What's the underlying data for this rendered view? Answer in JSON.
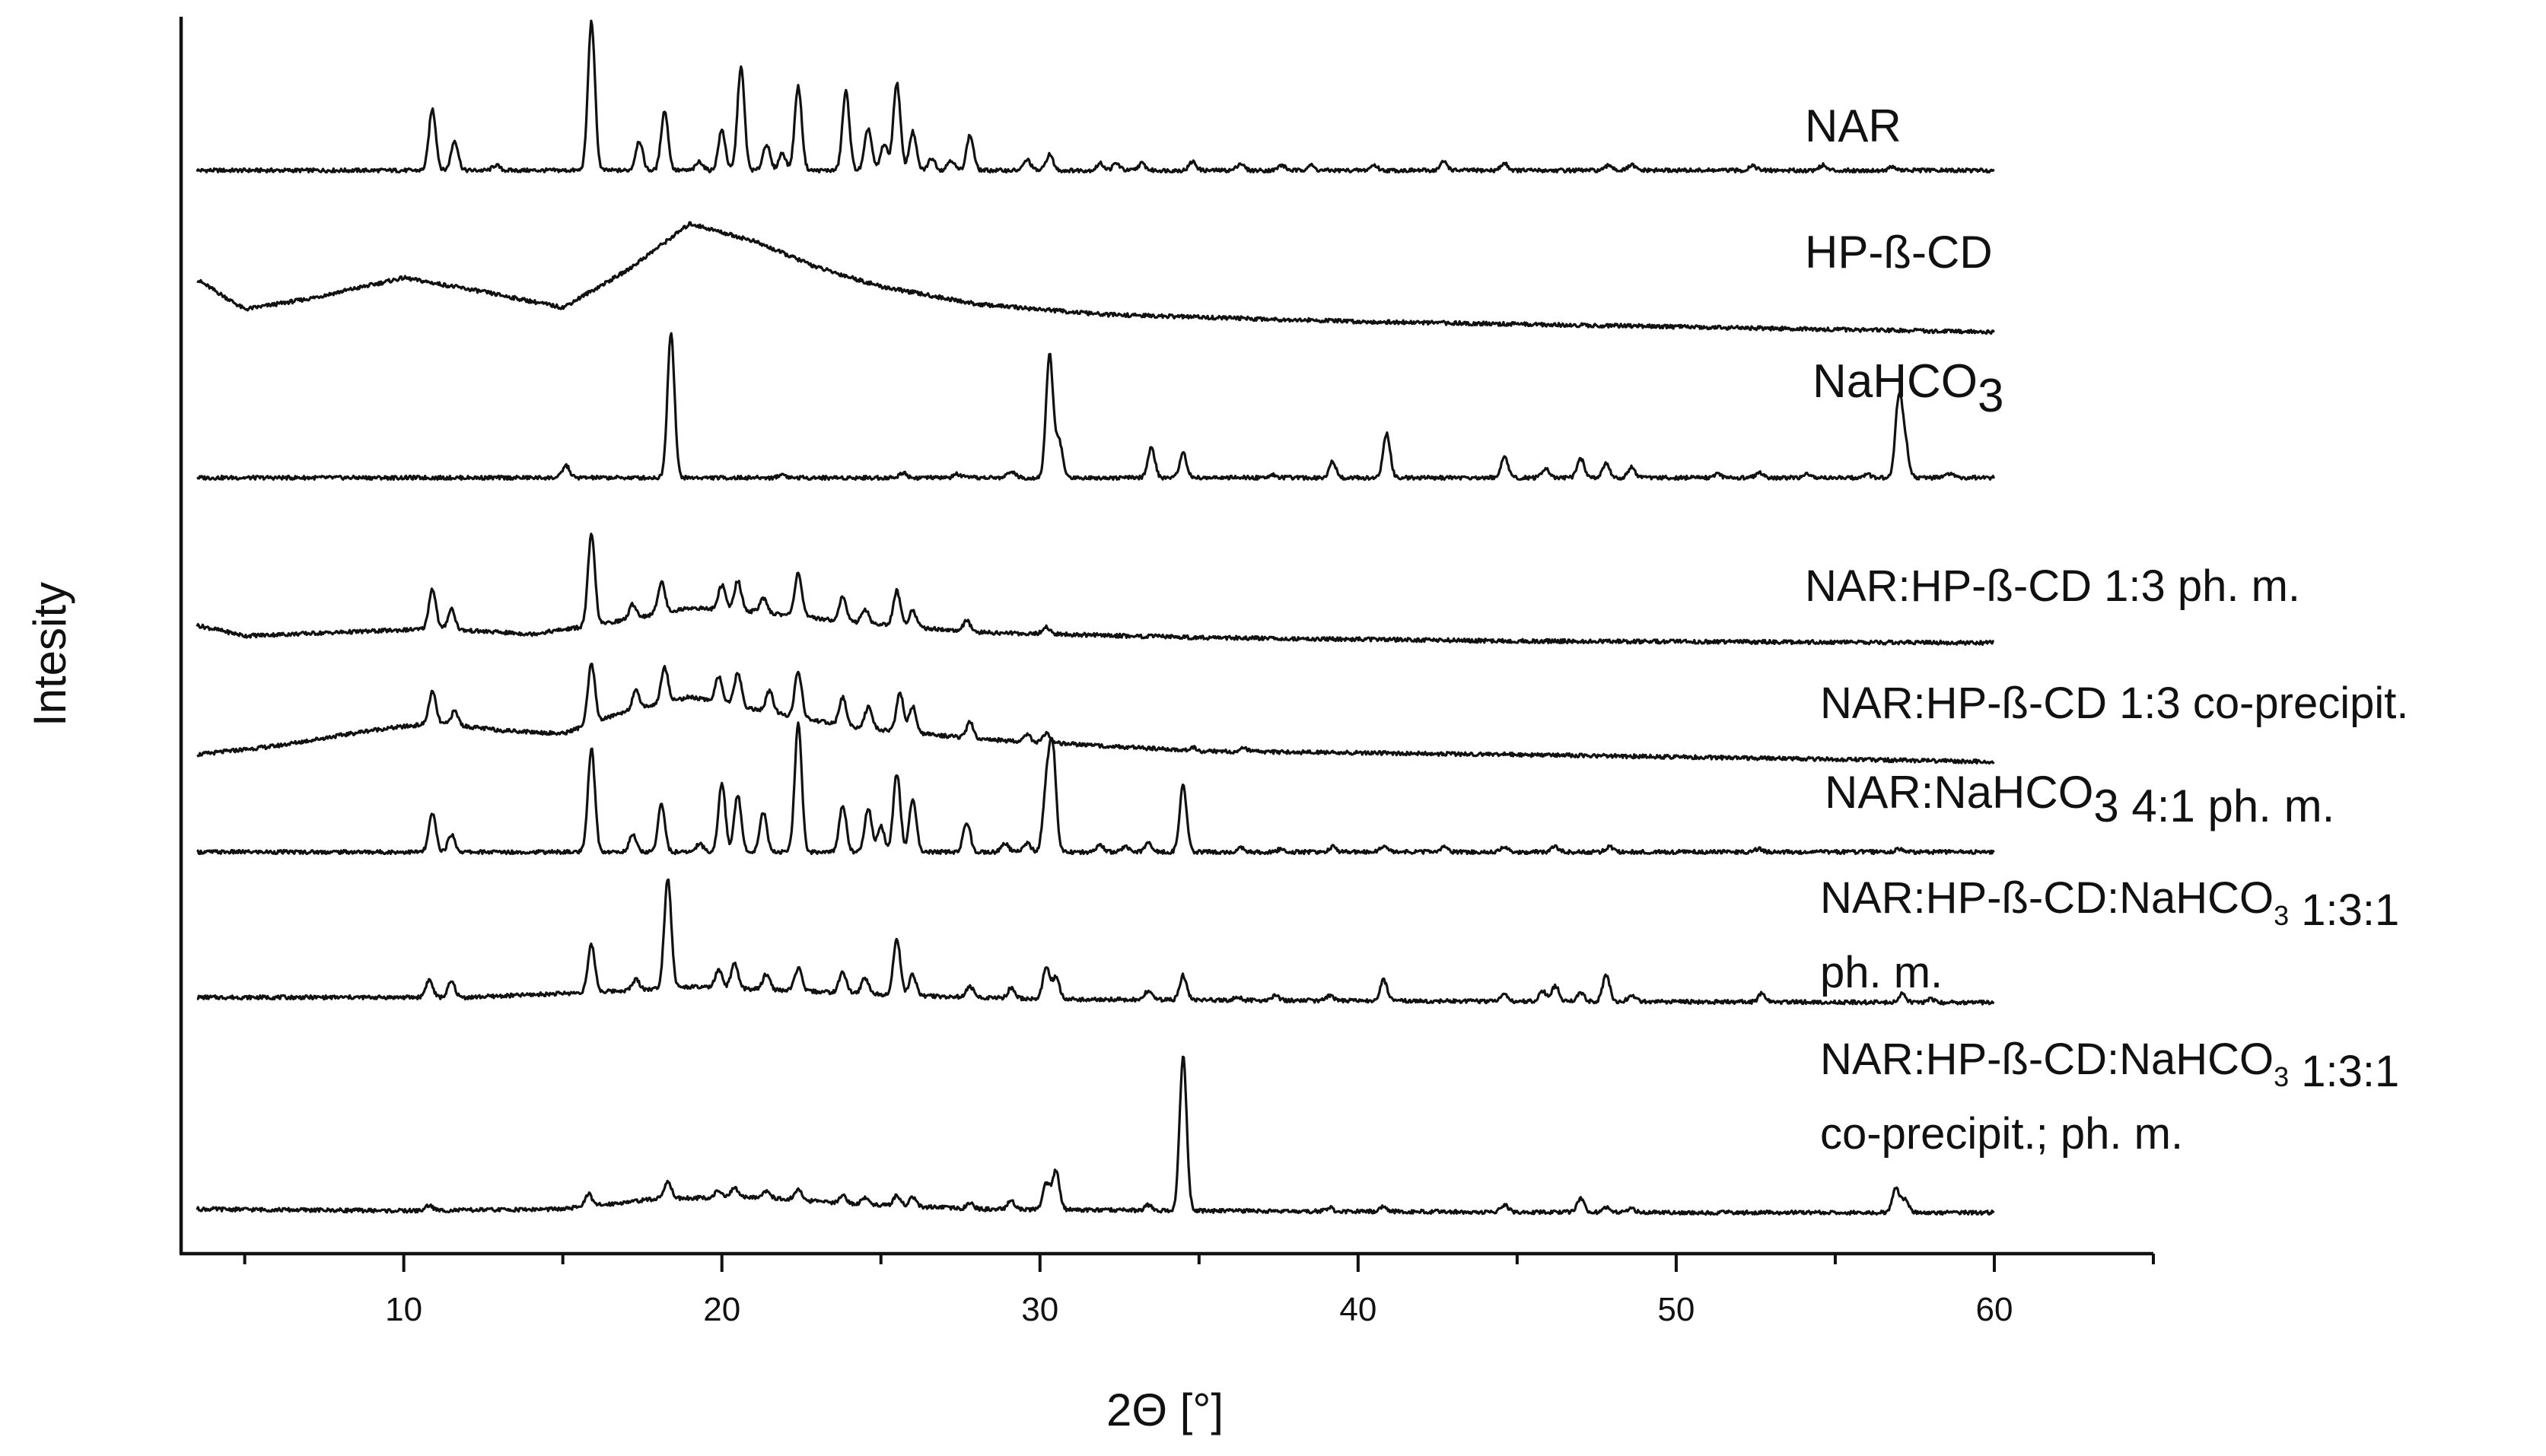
{
  "chart_data": {
    "type": "line",
    "xlabel": "2Θ [°]",
    "ylabel": "Intesity",
    "xlim": [
      3,
      65
    ],
    "x_ticks": [
      10,
      20,
      30,
      40,
      50,
      60
    ],
    "x_minor_ticks": [
      5,
      15,
      25,
      35,
      45,
      55,
      65
    ],
    "x_range_data": [
      3.5,
      60
    ],
    "y_ticks_shown": false,
    "legend": "none; each trace labelled at right",
    "series": [
      {
        "name": "NAR",
        "label_parts": [
          {
            "t": "NAR"
          }
        ],
        "label_lines": 1,
        "baseline": 0,
        "background": [
          [
            3.5,
            0
          ],
          [
            60,
            0
          ]
        ],
        "peaks": [
          [
            10.9,
            35
          ],
          [
            11.6,
            17
          ],
          [
            12.9,
            3
          ],
          [
            15.9,
            85
          ],
          [
            17.4,
            17
          ],
          [
            18.2,
            34
          ],
          [
            19.3,
            5
          ],
          [
            20.0,
            23
          ],
          [
            20.6,
            59
          ],
          [
            21.4,
            15
          ],
          [
            21.9,
            10
          ],
          [
            22.4,
            48
          ],
          [
            23.9,
            45
          ],
          [
            24.6,
            24
          ],
          [
            25.1,
            15
          ],
          [
            25.5,
            50
          ],
          [
            26.0,
            22
          ],
          [
            26.6,
            7
          ],
          [
            27.2,
            6
          ],
          [
            27.8,
            20
          ],
          [
            29.6,
            6
          ],
          [
            30.3,
            9
          ],
          [
            31.9,
            4
          ],
          [
            32.4,
            4
          ],
          [
            33.2,
            4
          ],
          [
            34.8,
            5
          ],
          [
            36.3,
            4
          ],
          [
            37.6,
            3
          ],
          [
            38.5,
            3
          ],
          [
            40.5,
            3
          ],
          [
            42.7,
            5
          ],
          [
            44.6,
            4
          ],
          [
            47.9,
            3
          ],
          [
            48.6,
            3
          ],
          [
            52.4,
            3
          ],
          [
            54.6,
            3
          ],
          [
            56.8,
            2
          ]
        ]
      },
      {
        "name": "HP-ß-CD",
        "label_parts": [
          {
            "t": "HP-ß-CD"
          }
        ],
        "label_lines": 1,
        "baseline": 0,
        "background": [
          [
            3.5,
            25
          ],
          [
            5,
            8
          ],
          [
            7,
            14
          ],
          [
            10,
            26
          ],
          [
            12.5,
            18
          ],
          [
            15,
            9
          ],
          [
            17,
            30
          ],
          [
            19,
            57
          ],
          [
            21,
            47
          ],
          [
            23,
            32
          ],
          [
            25,
            21
          ],
          [
            28,
            11
          ],
          [
            32,
            5
          ],
          [
            40,
            1
          ],
          [
            50,
            -2
          ],
          [
            60,
            -5
          ]
        ],
        "peaks": []
      },
      {
        "name": "NaHCO3",
        "label_parts": [
          {
            "t": "NaHCO"
          },
          {
            "t": "3",
            "sub": true
          }
        ],
        "label_lines": 1,
        "baseline": 0,
        "background": [
          [
            3.5,
            0
          ],
          [
            60,
            0
          ]
        ],
        "peaks": [
          [
            15.1,
            7
          ],
          [
            18.4,
            83
          ],
          [
            21.9,
            2
          ],
          [
            25.7,
            3
          ],
          [
            27.4,
            2
          ],
          [
            29.1,
            4
          ],
          [
            30.3,
            70
          ],
          [
            30.6,
            21
          ],
          [
            33.5,
            17
          ],
          [
            34.5,
            14
          ],
          [
            37.3,
            2
          ],
          [
            39.2,
            9
          ],
          [
            40.9,
            25
          ],
          [
            44.6,
            12
          ],
          [
            45.9,
            5
          ],
          [
            47.0,
            11
          ],
          [
            47.8,
            8
          ],
          [
            48.6,
            6
          ],
          [
            51.3,
            2
          ],
          [
            52.6,
            3
          ],
          [
            54.1,
            2
          ],
          [
            56.0,
            2
          ],
          [
            57.0,
            45
          ],
          [
            57.2,
            18
          ],
          [
            58.6,
            2
          ]
        ]
      },
      {
        "name": "NAR:HP-ß-CD 1:3 ph. m.",
        "label_parts": [
          {
            "t": "NAR:HP-ß-CD 1:3 ph. m."
          }
        ],
        "label_lines": 1,
        "baseline": 0,
        "background": [
          [
            3.5,
            10
          ],
          [
            5,
            4
          ],
          [
            8,
            6
          ],
          [
            11,
            8
          ],
          [
            14,
            5
          ],
          [
            16,
            10
          ],
          [
            19,
            20
          ],
          [
            21,
            18
          ],
          [
            24,
            12
          ],
          [
            28,
            6
          ],
          [
            35,
            3
          ],
          [
            45,
            1
          ],
          [
            60,
            0
          ]
        ],
        "peaks": [
          [
            10.9,
            23
          ],
          [
            11.5,
            12
          ],
          [
            15.9,
            52
          ],
          [
            17.2,
            8
          ],
          [
            18.1,
            18
          ],
          [
            20.0,
            14
          ],
          [
            20.5,
            17
          ],
          [
            21.3,
            8
          ],
          [
            22.4,
            25
          ],
          [
            23.8,
            14
          ],
          [
            24.5,
            8
          ],
          [
            25.5,
            20
          ],
          [
            26.0,
            10
          ],
          [
            27.7,
            6
          ],
          [
            30.2,
            4
          ]
        ]
      },
      {
        "name": "NAR:HP-ß-CD 1:3 co-precipit.",
        "label_parts": [
          {
            "t": "NAR:HP-ß-CD 1:3 co-precipit."
          }
        ],
        "label_lines": 1,
        "baseline": 0,
        "background": [
          [
            3.5,
            0
          ],
          [
            6,
            5
          ],
          [
            9,
            14
          ],
          [
            11,
            18
          ],
          [
            13,
            14
          ],
          [
            15,
            12
          ],
          [
            17,
            25
          ],
          [
            19,
            33
          ],
          [
            21,
            26
          ],
          [
            24,
            16
          ],
          [
            28,
            9
          ],
          [
            35,
            2
          ],
          [
            45,
            0
          ],
          [
            60,
            -4
          ]
        ],
        "peaks": [
          [
            10.9,
            18
          ],
          [
            11.6,
            8
          ],
          [
            15.9,
            34
          ],
          [
            17.3,
            10
          ],
          [
            18.2,
            20
          ],
          [
            19.9,
            15
          ],
          [
            20.5,
            19
          ],
          [
            21.5,
            12
          ],
          [
            22.4,
            26
          ],
          [
            23.8,
            16
          ],
          [
            24.6,
            12
          ],
          [
            25.6,
            22
          ],
          [
            26.0,
            15
          ],
          [
            27.8,
            9
          ],
          [
            29.6,
            4
          ],
          [
            30.2,
            5
          ],
          [
            34.8,
            2
          ],
          [
            36.4,
            2
          ]
        ]
      },
      {
        "name": "NAR:NaHCO3 4:1 ph. m.",
        "label_parts": [
          {
            "t": "NAR:NaHCO"
          },
          {
            "t": "3",
            "sub": true
          },
          {
            "t": " 4:1 ph. m."
          }
        ],
        "label_lines": 1,
        "baseline": 0,
        "background": [
          [
            3.5,
            0
          ],
          [
            60,
            0
          ]
        ],
        "peaks": [
          [
            10.9,
            22
          ],
          [
            11.5,
            10
          ],
          [
            15.9,
            59
          ],
          [
            17.2,
            10
          ],
          [
            18.1,
            27
          ],
          [
            19.3,
            5
          ],
          [
            20.0,
            39
          ],
          [
            20.5,
            33
          ],
          [
            21.3,
            23
          ],
          [
            22.4,
            73
          ],
          [
            23.8,
            27
          ],
          [
            24.6,
            25
          ],
          [
            25.0,
            15
          ],
          [
            25.5,
            45
          ],
          [
            26.0,
            30
          ],
          [
            27.7,
            17
          ],
          [
            28.9,
            5
          ],
          [
            29.6,
            5
          ],
          [
            30.2,
            35
          ],
          [
            30.4,
            57
          ],
          [
            31.9,
            4
          ],
          [
            32.7,
            3
          ],
          [
            33.4,
            5
          ],
          [
            34.5,
            38
          ],
          [
            36.3,
            3
          ],
          [
            37.6,
            2
          ],
          [
            39.2,
            3
          ],
          [
            40.8,
            3
          ],
          [
            42.7,
            3
          ],
          [
            44.6,
            3
          ],
          [
            46.2,
            3
          ],
          [
            47.9,
            3
          ],
          [
            52.6,
            2
          ],
          [
            57.0,
            2
          ]
        ]
      },
      {
        "name": "NAR:HP-ß-CD:NaHCO3 1:3:1 ph. m.",
        "label_parts": [
          {
            "t": "NAR:HP-ß-CD:NaHCO"
          },
          {
            "t": "3",
            "sub": true
          },
          {
            "t": " 1:3:1"
          }
        ],
        "label_lines": 2,
        "label_line2": "ph. m.",
        "baseline": 0,
        "background": [
          [
            3.5,
            3
          ],
          [
            8,
            3
          ],
          [
            12,
            3
          ],
          [
            16,
            6
          ],
          [
            19,
            9
          ],
          [
            22,
            7
          ],
          [
            26,
            4
          ],
          [
            30,
            2
          ],
          [
            40,
            1
          ],
          [
            60,
            0
          ]
        ],
        "peaks": [
          [
            10.8,
            10
          ],
          [
            11.5,
            9
          ],
          [
            15.9,
            27
          ],
          [
            17.3,
            6
          ],
          [
            18.3,
            63
          ],
          [
            19.9,
            10
          ],
          [
            20.4,
            14
          ],
          [
            21.4,
            9
          ],
          [
            22.4,
            13
          ],
          [
            23.8,
            12
          ],
          [
            24.5,
            9
          ],
          [
            25.5,
            32
          ],
          [
            26.0,
            12
          ],
          [
            27.8,
            6
          ],
          [
            29.1,
            6
          ],
          [
            30.2,
            18
          ],
          [
            30.5,
            12
          ],
          [
            33.4,
            5
          ],
          [
            34.5,
            14
          ],
          [
            36.2,
            2
          ],
          [
            37.4,
            3
          ],
          [
            39.1,
            3
          ],
          [
            40.8,
            12
          ],
          [
            44.6,
            4
          ],
          [
            45.8,
            6
          ],
          [
            46.2,
            9
          ],
          [
            47.0,
            5
          ],
          [
            47.8,
            15
          ],
          [
            48.6,
            4
          ],
          [
            52.7,
            5
          ],
          [
            57.1,
            5
          ],
          [
            58.0,
            2
          ]
        ]
      },
      {
        "name": "NAR:HP-ß-CD:NaHCO3 1:3:1 co-precipit.; ph. m.",
        "label_parts": [
          {
            "t": "NAR:HP-ß-CD:NaHCO"
          },
          {
            "t": "3",
            "sub": true
          },
          {
            "t": " 1:3:1"
          }
        ],
        "label_lines": 2,
        "label_line2": "co-precipit.; ph. m.",
        "baseline": 0,
        "background": [
          [
            3.5,
            2
          ],
          [
            10,
            1
          ],
          [
            15,
            2
          ],
          [
            18,
            8
          ],
          [
            21,
            9
          ],
          [
            24,
            5
          ],
          [
            28,
            2
          ],
          [
            35,
            1
          ],
          [
            50,
            0
          ],
          [
            60,
            0
          ]
        ],
        "peaks": [
          [
            10.8,
            3
          ],
          [
            15.8,
            7
          ],
          [
            18.3,
            10
          ],
          [
            19.9,
            4
          ],
          [
            20.4,
            5
          ],
          [
            21.4,
            4
          ],
          [
            22.4,
            6
          ],
          [
            23.8,
            5
          ],
          [
            24.5,
            4
          ],
          [
            25.5,
            6
          ],
          [
            26.0,
            5
          ],
          [
            27.8,
            3
          ],
          [
            29.1,
            5
          ],
          [
            30.2,
            15
          ],
          [
            30.5,
            22
          ],
          [
            33.4,
            3
          ],
          [
            34.5,
            88
          ],
          [
            39.1,
            2
          ],
          [
            40.8,
            3
          ],
          [
            44.6,
            4
          ],
          [
            47.0,
            8
          ],
          [
            47.8,
            3
          ],
          [
            48.6,
            2
          ],
          [
            56.9,
            14
          ],
          [
            57.2,
            8
          ]
        ]
      }
    ]
  }
}
